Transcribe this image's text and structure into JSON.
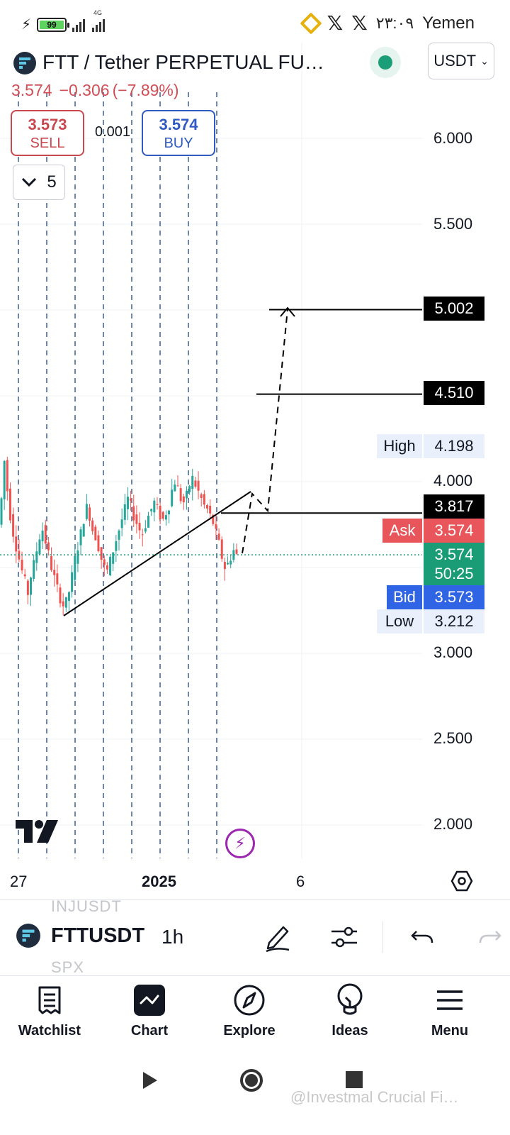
{
  "status_bar": {
    "battery": "99",
    "battery_level": 0.99,
    "network": "4G",
    "time": "٢٣:٠٩",
    "region": "Yemen",
    "icons": [
      "bolt-icon",
      "binance-icon",
      "x-icon",
      "x-icon"
    ]
  },
  "header": {
    "title": "FTT / Tether PERPETUAL FU…",
    "currency": "USDT",
    "price": "3.574",
    "change": "−0.306",
    "change_pct": "(−7.89%)",
    "sell_price": "3.573",
    "sell_label": "SELL",
    "spread": "0.001",
    "buy_price": "3.574",
    "buy_label": "BUY",
    "collapse_count": "5"
  },
  "chart": {
    "y_axis": [
      "6.000",
      "5.500",
      "5.002",
      "4.510",
      "4.198",
      "4.000",
      "3.817",
      "3.574",
      "3.573",
      "3.212",
      "3.000",
      "2.500",
      "2.000"
    ],
    "y_ticks": [
      "6.000",
      "5.500",
      "4.000",
      "3.000",
      "2.500",
      "2.000"
    ],
    "x_axis": [
      "27",
      "2025",
      "6"
    ],
    "high_label": "High",
    "high_value": "4.198",
    "low_label": "Low",
    "low_value": "3.212",
    "ask_label": "Ask",
    "ask_value": "3.574",
    "bid_label": "Bid",
    "bid_value": "3.573",
    "last_price": "3.574",
    "countdown": "50:25",
    "level_target_2": "5.002",
    "level_target_1": "4.510",
    "level_breakout": "3.817",
    "colors": {
      "up": "#26a69a",
      "down": "#ef5350",
      "ask": "#e8555a",
      "bid": "#2f64e4",
      "last": "#1a9c77"
    }
  },
  "toolbar": {
    "ghost_top": "INJUSDT",
    "symbol": "FTTUSDT",
    "ghost_bottom": "SPX",
    "interval": "1h"
  },
  "nav": [
    {
      "label": "Watchlist",
      "icon": "watchlist-icon"
    },
    {
      "label": "Chart",
      "icon": "chart-icon"
    },
    {
      "label": "Explore",
      "icon": "compass-icon"
    },
    {
      "label": "Ideas",
      "icon": "lightbulb-icon"
    },
    {
      "label": "Menu",
      "icon": "menu-icon"
    }
  ],
  "watermark": "@Investmal Crucial Fi…"
}
